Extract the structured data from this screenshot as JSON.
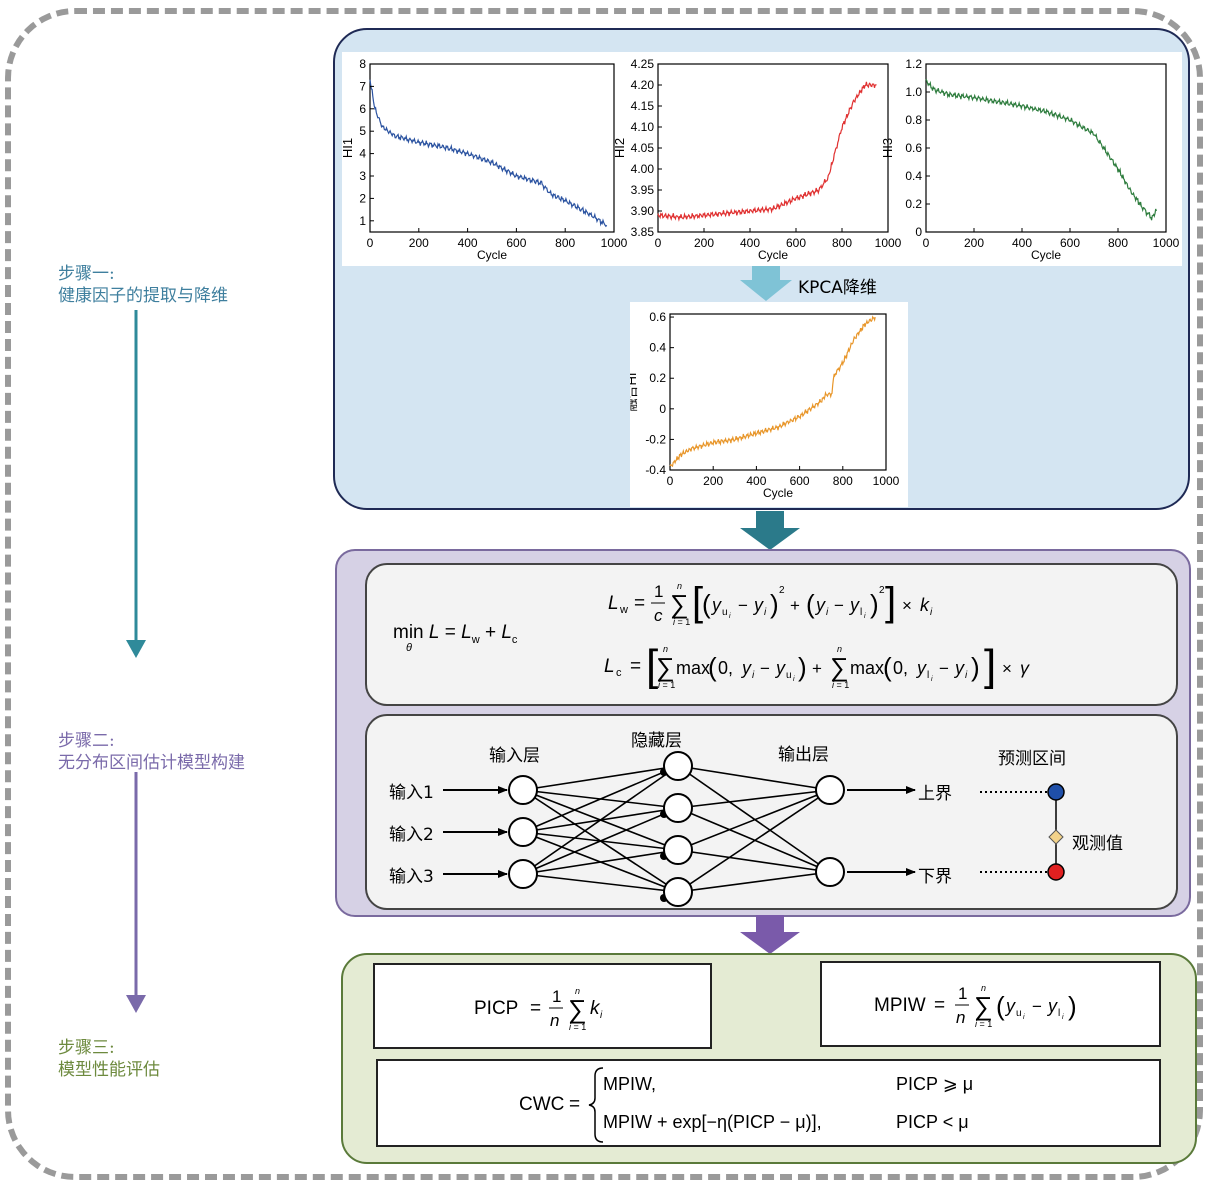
{
  "steps": [
    {
      "label": "步骤一:",
      "desc": "健康因子的提取与降维",
      "color": "#3f7f9e"
    },
    {
      "label": "步骤二:",
      "desc": "无分布区间估计模型构建",
      "color": "#7a6aaa"
    },
    {
      "label": "步骤三:",
      "desc": "模型性能评估",
      "color": "#6d8a3e"
    }
  ],
  "kpca_label": "KPCA降维",
  "charts": [
    {
      "type": "line",
      "ylabel": "HI1",
      "xlabel": "Cycle",
      "color": "#2a52a0",
      "yticks": [
        "8",
        "7",
        "6",
        "5",
        "4",
        "3",
        "2",
        "1"
      ],
      "xticks": [
        "0",
        "200",
        "400",
        "600",
        "800",
        "1000"
      ],
      "ylim": [
        0.5,
        8
      ],
      "xlim": [
        0,
        1000
      ],
      "x": [
        0,
        20,
        50,
        100,
        200,
        300,
        400,
        500,
        600,
        700,
        740,
        800,
        900,
        970
      ],
      "y": [
        7.3,
        6,
        5.2,
        4.8,
        4.5,
        4.3,
        4.0,
        3.6,
        3.0,
        2.7,
        2.2,
        1.9,
        1.3,
        0.8
      ]
    },
    {
      "type": "line",
      "ylabel": "HI2",
      "xlabel": "Cycle",
      "color": "#e03030",
      "yticks": [
        "4.25",
        "4.20",
        "4.15",
        "4.10",
        "4.05",
        "4.00",
        "3.95",
        "3.90",
        "3.85"
      ],
      "xticks": [
        "0",
        "200",
        "400",
        "600",
        "800",
        "1000"
      ],
      "ylim": [
        3.85,
        4.25
      ],
      "xlim": [
        0,
        1000
      ],
      "x": [
        0,
        100,
        200,
        300,
        400,
        500,
        600,
        700,
        740,
        760,
        800,
        850,
        900,
        950
      ],
      "y": [
        3.89,
        3.885,
        3.89,
        3.895,
        3.9,
        3.905,
        3.93,
        3.95,
        3.98,
        4.02,
        4.1,
        4.16,
        4.2,
        4.2
      ]
    },
    {
      "type": "line",
      "ylabel": "HI3",
      "xlabel": "Cycle",
      "color": "#2e7d3e",
      "yticks": [
        "1.2",
        "1.0",
        "0.8",
        "0.6",
        "0.4",
        "0.2",
        "0"
      ],
      "xticks": [
        "0",
        "200",
        "400",
        "600",
        "800",
        "1000"
      ],
      "ylim": [
        0,
        1.2
      ],
      "xlim": [
        0,
        1000
      ],
      "x": [
        0,
        30,
        100,
        200,
        300,
        400,
        500,
        600,
        700,
        740,
        800,
        850,
        900,
        940,
        960
      ],
      "y": [
        1.08,
        1.02,
        0.98,
        0.96,
        0.93,
        0.9,
        0.86,
        0.8,
        0.7,
        0.6,
        0.45,
        0.3,
        0.18,
        0.1,
        0.15
      ]
    },
    {
      "type": "line",
      "ylabel": "融合HI",
      "xlabel": "Cycle",
      "color": "#e8962a",
      "yticks": [
        "0.6",
        "0.4",
        "0.2",
        "0",
        "-0.2",
        "-0.4"
      ],
      "xticks": [
        "0",
        "200",
        "400",
        "600",
        "800",
        "1000"
      ],
      "ylim": [
        -0.4,
        0.62
      ],
      "xlim": [
        0,
        1000
      ],
      "x": [
        0,
        50,
        100,
        200,
        300,
        400,
        500,
        600,
        700,
        720,
        750,
        760,
        800,
        850,
        900,
        950
      ],
      "y": [
        -0.38,
        -0.3,
        -0.26,
        -0.22,
        -0.2,
        -0.16,
        -0.12,
        -0.05,
        0.05,
        0.09,
        0.1,
        0.22,
        0.3,
        0.45,
        0.55,
        0.6
      ]
    }
  ],
  "network": {
    "input_layer_label": "输入层",
    "hidden_layer_label": "隐藏层",
    "output_layer_label": "输出层",
    "interval_label": "预测区间",
    "inputs": [
      "输入1",
      "输入2",
      "输入3"
    ],
    "upper_label": "上界",
    "lower_label": "下界",
    "observed_label": "观测值",
    "upper_color": "#1f4fa8",
    "lower_color": "#e02020",
    "observed_color": "#f2d28a"
  },
  "formulas": {
    "min": "min",
    "theta": "θ",
    "L": "L",
    "eq": " = ",
    "Lw": "L",
    "w_sub": "w",
    "plus": " + ",
    "Lc": "L",
    "c_sub": "c",
    "lw_rhs": "[ ( y_u_i − y_i )² + ( y_i − y_l_i )² ] × k_i",
    "lc_rhs": "[ Σ max(0, y_i − y_u_i) + Σ max(0, y_l_i − y_i) ] × γ",
    "picp_name": "PICP",
    "mpiw_name": "MPIW",
    "cwc_name": "CWC",
    "cwc_case1": "MPIW,",
    "cwc_cond1": "PICP ⩾ μ",
    "cwc_case2": "MPIW + exp[−η(PICP − μ)],",
    "cwc_cond2": "PICP < μ"
  }
}
